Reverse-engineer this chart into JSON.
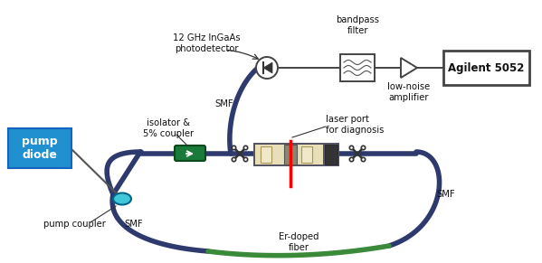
{
  "bg_color": "#ffffff",
  "fiber_color": "#2e3a6e",
  "er_fiber_color": "#3a8a3a",
  "pump_coupler_color": "#40c8d8",
  "isolator_color": "#1a7a3a",
  "pump_box_color": "#2090d0",
  "pump_text_color": "#ffffff",
  "signal_color": "#ff0000",
  "box_edge_color": "#444444",
  "component_fill": "#e8deb8",
  "component_edge": "#555566",
  "labels": {
    "photodetector": "12 GHz InGaAs\nphotodetector",
    "smf_top": "SMF",
    "smf_left": "SMF",
    "smf_right": "SMF",
    "er_fiber": "Er-doped\nfiber",
    "bandpass": "bandpass\nfilter",
    "low_noise": "low-noise\namplifier",
    "agilent": "Agilent 5052",
    "pump_diode": "pump\ndiode",
    "pump_coupler": "pump coupler",
    "isolator": "isolator &\n5% coupler",
    "laser_port": "laser port\nfor diagnosis"
  },
  "fiber_lw": 4.0,
  "wire_lw": 1.4
}
